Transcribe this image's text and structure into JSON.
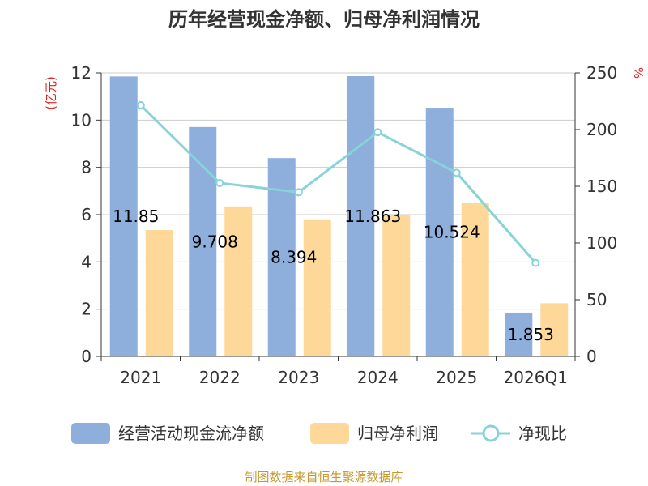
{
  "chart_data": {
    "type": "bar",
    "title": "历年经营现金净额、归母净利润情况",
    "categories": [
      "2021",
      "2022",
      "2023",
      "2024",
      "2025",
      "2026Q1"
    ],
    "series": [
      {
        "name": "经营活动现金流净额",
        "kind": "bar",
        "axis": "left",
        "color": "#8eaedc",
        "values": [
          11.85,
          9.708,
          8.394,
          11.863,
          10.524,
          1.853
        ],
        "labels": [
          "11.85",
          "9.708",
          "8.394",
          "11.863",
          "10.524",
          "1.853"
        ]
      },
      {
        "name": "归母净利润",
        "kind": "bar",
        "axis": "left",
        "color": "#fdd898",
        "values": [
          5.35,
          6.35,
          5.8,
          6.0,
          6.5,
          2.25
        ]
      },
      {
        "name": "净现比",
        "kind": "line",
        "axis": "right",
        "color": "#86d3d8",
        "values": [
          221.5,
          152.9,
          144.7,
          197.7,
          161.9,
          82.4
        ]
      }
    ],
    "y_left": {
      "label": "(亿元)",
      "min": 0,
      "max": 12,
      "ticks": [
        "0",
        "2",
        "4",
        "6",
        "8",
        "10",
        "12"
      ]
    },
    "y_right": {
      "label": "%",
      "min": 0,
      "max": 250,
      "ticks": [
        "0",
        "50",
        "100",
        "150",
        "200",
        "250"
      ]
    },
    "grid": true,
    "legend_position": "bottom",
    "source": "制图数据来自恒生聚源数据库"
  }
}
